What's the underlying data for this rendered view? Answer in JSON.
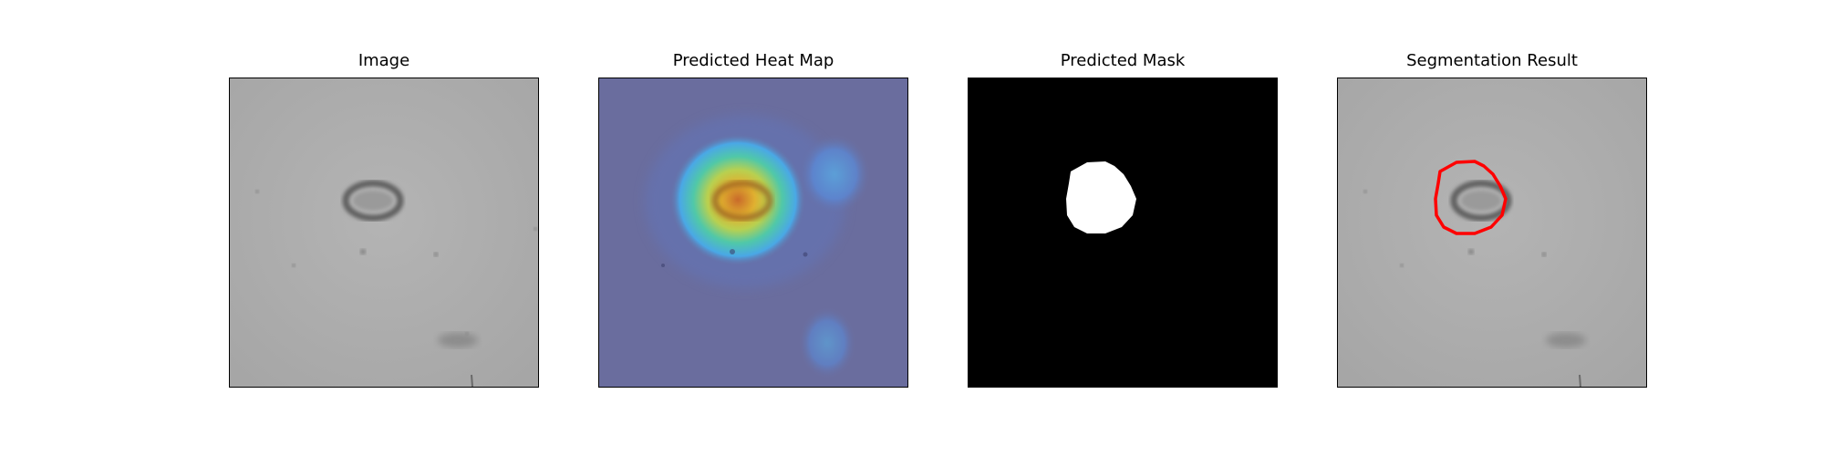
{
  "panels": [
    {
      "title": "Image"
    },
    {
      "title": "Predicted Heat Map"
    },
    {
      "title": "Predicted Mask"
    },
    {
      "title": "Segmentation Result"
    }
  ],
  "colors": {
    "background_gray": "#acacac",
    "heatmap_base": "#6a6d9e",
    "heatmap_hot": "#d4862e",
    "mask_background": "#000000",
    "mask_foreground": "#ffffff",
    "contour": "#ff0000"
  }
}
